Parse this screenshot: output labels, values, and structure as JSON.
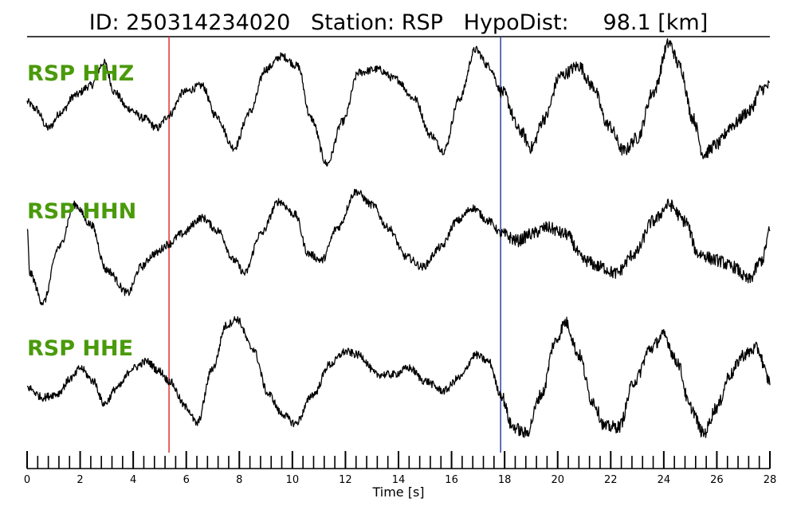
{
  "chart_data": {
    "type": "line",
    "title": "ID: 250314234020   Station: RSP   HypoDist:     98.1 [km]",
    "xlabel": "Time [s]",
    "ylabel": "",
    "xlim": [
      0,
      28
    ],
    "x_ticks": [
      0,
      2,
      4,
      6,
      8,
      10,
      12,
      14,
      16,
      18,
      20,
      22,
      24,
      26,
      28
    ],
    "minor_tick_step": 0.4,
    "label_color": "#4a9a0a",
    "trace_color": "#000000",
    "markers": [
      {
        "type": "P-pick",
        "time": 5.35,
        "color": "#e03030"
      },
      {
        "type": "S-pick",
        "time": 17.85,
        "color": "#3040a0"
      }
    ],
    "series": [
      {
        "name": "RSP HHZ",
        "noise": 0.06,
        "points": [
          [
            0,
            0.05
          ],
          [
            0.3,
            -0.05
          ],
          [
            0.8,
            -0.35
          ],
          [
            1.3,
            -0.1
          ],
          [
            1.8,
            0.15
          ],
          [
            2.4,
            0.3
          ],
          [
            2.9,
            0.65
          ],
          [
            3.3,
            0.2
          ],
          [
            3.8,
            -0.05
          ],
          [
            4.4,
            -0.2
          ],
          [
            4.9,
            -0.35
          ],
          [
            5.35,
            -0.15
          ],
          [
            5.9,
            0.2
          ],
          [
            6.6,
            0.3
          ],
          [
            7.1,
            -0.15
          ],
          [
            7.8,
            -0.65
          ],
          [
            8.4,
            -0.1
          ],
          [
            9.0,
            0.55
          ],
          [
            9.6,
            0.75
          ],
          [
            10.2,
            0.6
          ],
          [
            10.7,
            -0.2
          ],
          [
            11.3,
            -0.9
          ],
          [
            11.9,
            -0.25
          ],
          [
            12.5,
            0.5
          ],
          [
            13.2,
            0.55
          ],
          [
            13.9,
            0.4
          ],
          [
            14.6,
            0.1
          ],
          [
            15.2,
            -0.45
          ],
          [
            15.7,
            -0.7
          ],
          [
            16.3,
            0.1
          ],
          [
            16.9,
            0.85
          ],
          [
            17.4,
            0.6
          ],
          [
            17.9,
            0.2
          ],
          [
            18.6,
            -0.4
          ],
          [
            19.0,
            -0.65
          ],
          [
            19.5,
            -0.2
          ],
          [
            20.1,
            0.45
          ],
          [
            20.8,
            0.6
          ],
          [
            21.3,
            0.3
          ],
          [
            21.9,
            -0.3
          ],
          [
            22.5,
            -0.7
          ],
          [
            23.0,
            -0.5
          ],
          [
            23.6,
            0.2
          ],
          [
            24.2,
            0.95
          ],
          [
            24.6,
            0.6
          ],
          [
            25.1,
            -0.2
          ],
          [
            25.5,
            -0.75
          ],
          [
            26.0,
            -0.6
          ],
          [
            26.6,
            -0.3
          ],
          [
            27.2,
            -0.1
          ],
          [
            27.7,
            0.25
          ],
          [
            28.0,
            0.3
          ]
        ]
      },
      {
        "name": "RSP HHN",
        "noise": 0.06,
        "points": [
          [
            0,
            0.2
          ],
          [
            0.1,
            -0.5
          ],
          [
            0.6,
            -0.95
          ],
          [
            1.2,
            -0.1
          ],
          [
            1.8,
            0.55
          ],
          [
            2.4,
            0.25
          ],
          [
            3.0,
            -0.45
          ],
          [
            3.8,
            -0.8
          ],
          [
            4.3,
            -0.4
          ],
          [
            4.8,
            -0.2
          ],
          [
            5.35,
            -0.05
          ],
          [
            5.8,
            0.1
          ],
          [
            6.6,
            0.35
          ],
          [
            7.2,
            0.15
          ],
          [
            7.8,
            -0.3
          ],
          [
            8.2,
            -0.5
          ],
          [
            8.8,
            0.1
          ],
          [
            9.5,
            0.6
          ],
          [
            10.1,
            0.4
          ],
          [
            10.6,
            -0.2
          ],
          [
            11.1,
            -0.3
          ],
          [
            11.7,
            0.2
          ],
          [
            12.4,
            0.75
          ],
          [
            13.0,
            0.55
          ],
          [
            13.6,
            0.2
          ],
          [
            14.3,
            -0.25
          ],
          [
            14.9,
            -0.4
          ],
          [
            15.6,
            -0.1
          ],
          [
            16.2,
            0.3
          ],
          [
            16.8,
            0.5
          ],
          [
            17.4,
            0.3
          ],
          [
            17.9,
            0.1
          ],
          [
            18.5,
            0.0
          ],
          [
            19.0,
            0.1
          ],
          [
            19.6,
            0.2
          ],
          [
            20.3,
            0.1
          ],
          [
            21.0,
            -0.3
          ],
          [
            21.6,
            -0.4
          ],
          [
            22.2,
            -0.5
          ],
          [
            22.9,
            -0.2
          ],
          [
            23.6,
            0.3
          ],
          [
            24.2,
            0.55
          ],
          [
            24.8,
            0.3
          ],
          [
            25.3,
            -0.2
          ],
          [
            26.0,
            -0.3
          ],
          [
            26.6,
            -0.4
          ],
          [
            27.2,
            -0.6
          ],
          [
            27.7,
            -0.3
          ],
          [
            28.0,
            0.15
          ]
        ]
      },
      {
        "name": "RSP HHE",
        "noise": 0.06,
        "points": [
          [
            0,
            -0.2
          ],
          [
            0.6,
            -0.35
          ],
          [
            1.1,
            -0.3
          ],
          [
            1.7,
            -0.05
          ],
          [
            2.0,
            0.1
          ],
          [
            2.5,
            -0.1
          ],
          [
            2.9,
            -0.45
          ],
          [
            3.4,
            -0.2
          ],
          [
            4.0,
            0.1
          ],
          [
            4.5,
            0.2
          ],
          [
            5.0,
            0.05
          ],
          [
            5.35,
            -0.1
          ],
          [
            6.0,
            -0.5
          ],
          [
            6.4,
            -0.75
          ],
          [
            7.0,
            0.1
          ],
          [
            7.5,
            0.75
          ],
          [
            7.9,
            0.85
          ],
          [
            8.5,
            0.4
          ],
          [
            9.1,
            -0.3
          ],
          [
            9.6,
            -0.6
          ],
          [
            10.1,
            -0.75
          ],
          [
            10.8,
            -0.3
          ],
          [
            11.4,
            0.15
          ],
          [
            12.0,
            0.35
          ],
          [
            12.5,
            0.3
          ],
          [
            13.2,
            0.0
          ],
          [
            13.8,
            0.0
          ],
          [
            14.4,
            0.1
          ],
          [
            15.0,
            -0.1
          ],
          [
            15.7,
            -0.25
          ],
          [
            16.3,
            -0.05
          ],
          [
            16.9,
            0.3
          ],
          [
            17.4,
            0.2
          ],
          [
            17.85,
            -0.3
          ],
          [
            18.3,
            -0.8
          ],
          [
            18.8,
            -0.9
          ],
          [
            19.4,
            -0.3
          ],
          [
            19.9,
            0.5
          ],
          [
            20.3,
            0.8
          ],
          [
            20.8,
            0.3
          ],
          [
            21.3,
            -0.4
          ],
          [
            21.8,
            -0.8
          ],
          [
            22.3,
            -0.8
          ],
          [
            22.9,
            -0.1
          ],
          [
            23.5,
            0.4
          ],
          [
            24.0,
            0.6
          ],
          [
            24.5,
            0.2
          ],
          [
            25.0,
            -0.5
          ],
          [
            25.5,
            -0.9
          ],
          [
            26.0,
            -0.5
          ],
          [
            26.5,
            0.0
          ],
          [
            27.0,
            0.3
          ],
          [
            27.5,
            0.4
          ],
          [
            28.0,
            -0.1
          ]
        ]
      }
    ]
  }
}
